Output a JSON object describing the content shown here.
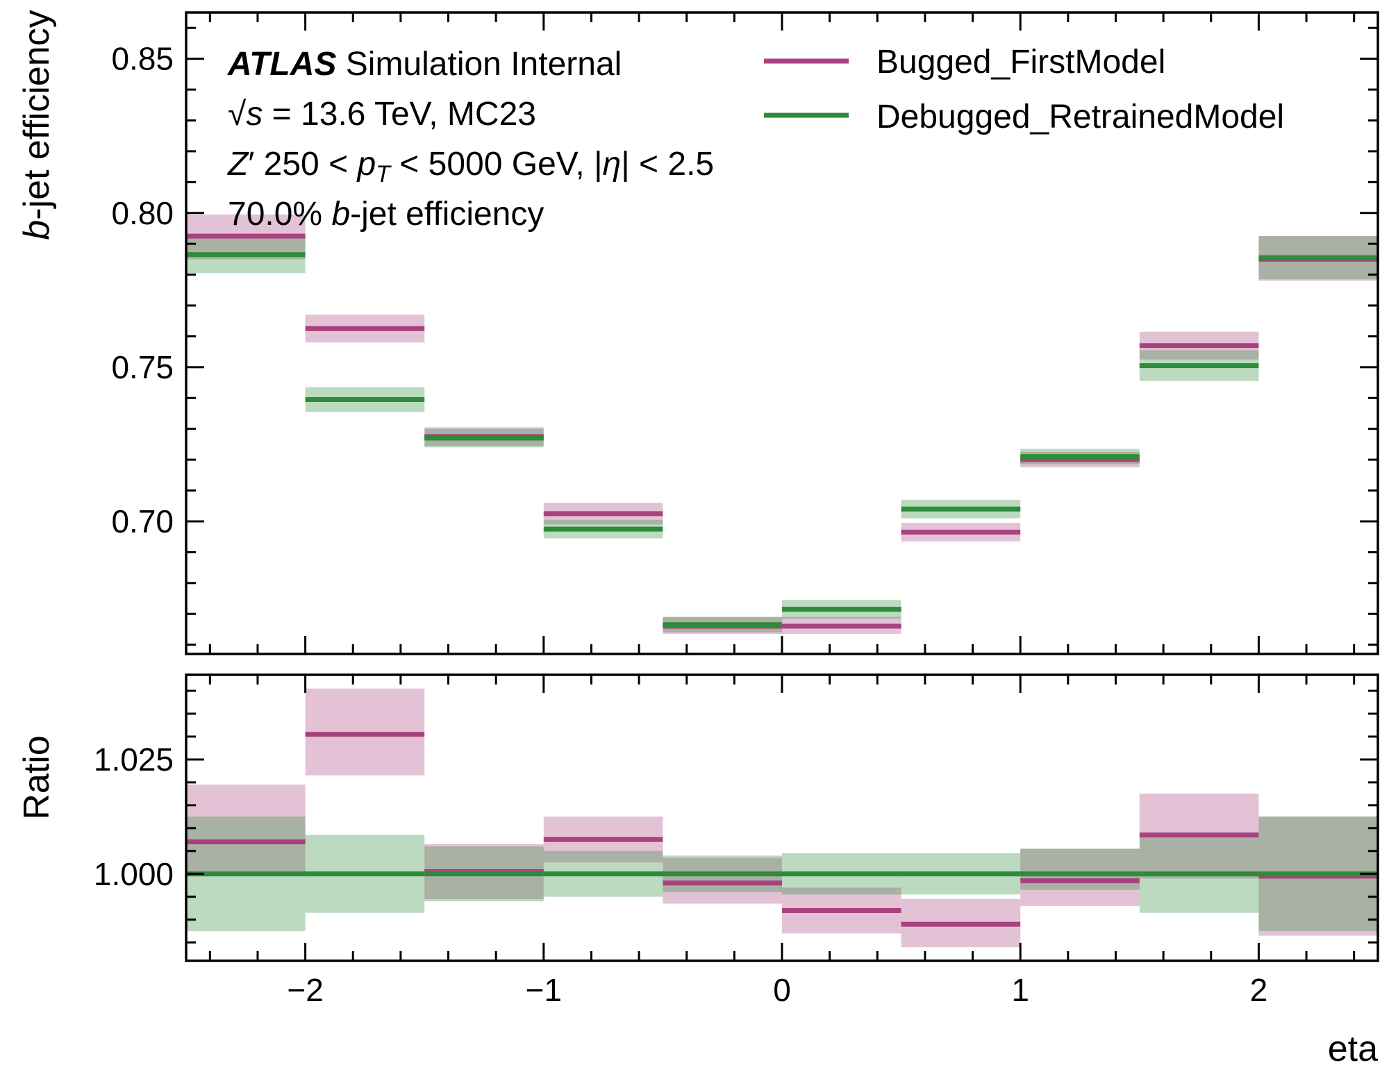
{
  "chart_data": {
    "type": "line",
    "subtype": "step-histogram-with-uncertainty-bands",
    "x_edges": [
      -2.5,
      -2.0,
      -1.5,
      -1.0,
      -0.5,
      0.0,
      0.5,
      1.0,
      1.5,
      2.0,
      2.5
    ],
    "xlim": [
      -2.5,
      2.5
    ],
    "xlabel": "eta",
    "x_ticks": [
      -2,
      -1,
      0,
      1,
      2
    ],
    "x_tick_labels": [
      "−2",
      "−1",
      "0",
      "1",
      "2"
    ],
    "atlas_label": {
      "bold": "ATLAS",
      "rest": " Simulation Internal",
      "line2": "√s = 13.6 TeV, MC23",
      "line3": "Z′ 250 < pT < 5000 GeV, |η| < 2.5",
      "line4": "70.0% b-jet efficiency"
    },
    "legend": {
      "position": "top-right"
    },
    "series": [
      {
        "name": "Bugged_FirstModel",
        "color": "#a8427f"
      },
      {
        "name": "Debugged_RetrainedModel",
        "color": "#2e8b3a"
      }
    ],
    "panels": [
      {
        "id": "main",
        "ylabel": "b-jet efficiency",
        "ylim": [
          0.657,
          0.865
        ],
        "y_ticks": [
          0.7,
          0.75,
          0.8,
          0.85
        ],
        "y_tick_labels": [
          "0.70",
          "0.75",
          "0.80",
          "0.85"
        ],
        "series_values": [
          {
            "name": "Bugged_FirstModel",
            "values": [
              0.7925,
              0.7625,
              0.7275,
              0.7025,
              0.666,
              0.666,
              0.6965,
              0.72,
              0.757,
              0.785
            ],
            "lower": [
              0.785,
              0.758,
              0.7245,
              0.699,
              0.6635,
              0.6635,
              0.6935,
              0.7175,
              0.7525,
              0.778
            ],
            "upper": [
              0.7995,
              0.767,
              0.7305,
              0.706,
              0.669,
              0.669,
              0.6995,
              0.7225,
              0.7615,
              0.7925
            ]
          },
          {
            "name": "Debugged_RetrainedModel",
            "values": [
              0.7865,
              0.7395,
              0.727,
              0.6975,
              0.6665,
              0.6715,
              0.704,
              0.721,
              0.7505,
              0.7855
            ],
            "lower": [
              0.7805,
              0.7355,
              0.724,
              0.6945,
              0.664,
              0.6685,
              0.701,
              0.7185,
              0.7455,
              0.7785
            ],
            "upper": [
              0.7925,
              0.7435,
              0.73,
              0.7005,
              0.669,
              0.6745,
              0.707,
              0.7235,
              0.7555,
              0.7925
            ]
          }
        ]
      },
      {
        "id": "ratio",
        "ylabel": "Ratio",
        "ylim": [
          0.981,
          1.0435
        ],
        "y_ticks": [
          1.0,
          1.025
        ],
        "y_tick_labels": [
          "1.000",
          "1.025"
        ],
        "series_values": [
          {
            "name": "Bugged_FirstModel",
            "values": [
              1.007,
              1.0305,
              1.0005,
              1.0075,
              0.998,
              0.992,
              0.989,
              0.9985,
              1.0085,
              0.9995
            ],
            "lower": [
              0.9995,
              1.0215,
              0.9945,
              1.0025,
              0.9935,
              0.987,
              0.984,
              0.993,
              0.999,
              0.9865
            ],
            "upper": [
              1.0195,
              1.0405,
              1.0065,
              1.0125,
              1.0035,
              0.997,
              0.9945,
              1.0055,
              1.0175,
              1.0125
            ]
          },
          {
            "name": "Debugged_RetrainedModel",
            "values": [
              1.0,
              1.0,
              1.0,
              1.0,
              1.0,
              1.0,
              1.0,
              1.0,
              1.0,
              1.0
            ],
            "lower": [
              0.9875,
              0.9915,
              0.994,
              0.995,
              0.996,
              0.9955,
              0.9955,
              0.9965,
              0.9915,
              0.9875
            ],
            "upper": [
              1.0125,
              1.0085,
              1.006,
              1.005,
              1.004,
              1.0045,
              1.0045,
              1.0055,
              1.0085,
              1.0125
            ]
          }
        ]
      }
    ]
  }
}
